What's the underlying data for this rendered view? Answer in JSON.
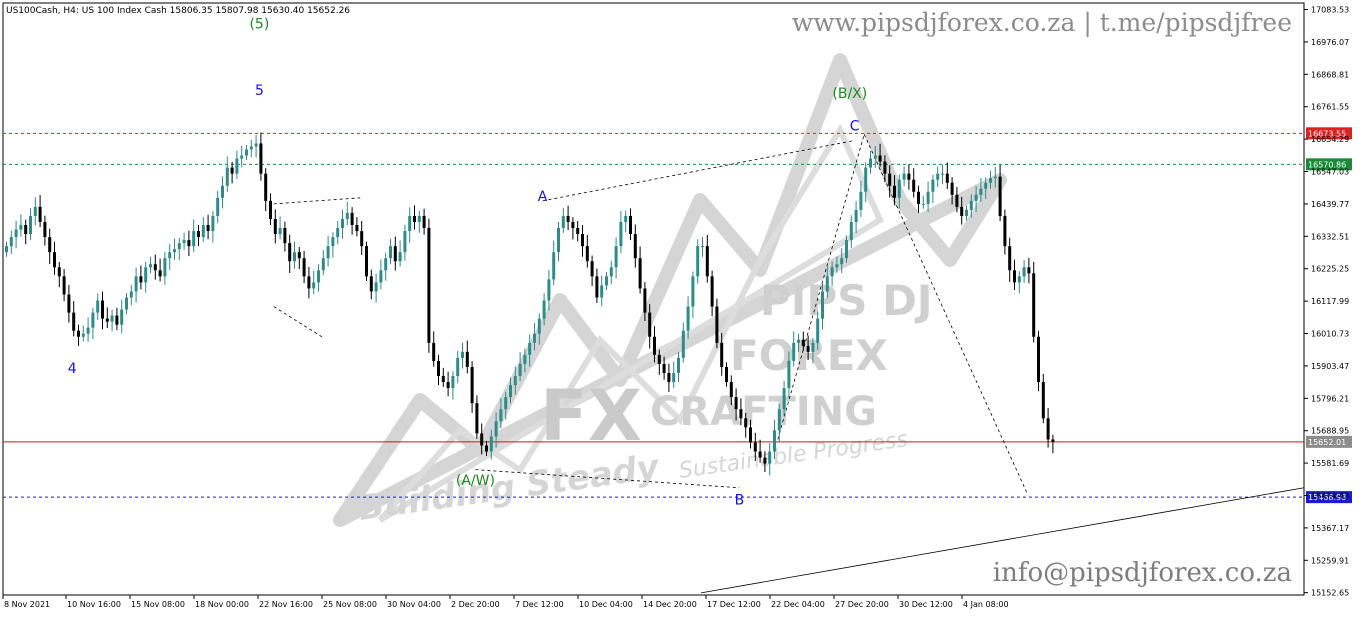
{
  "header": {
    "info": "US100Cash, H4:  US 100 Index Cash  15806.35 15807.98 15630.40 15652.26"
  },
  "watermark": {
    "website": "www.pipsdjforex.co.za | t.me/pipsdjfree",
    "email": "info@pipsdjforex.co.za",
    "logo_lines": [
      "PIPS DJ",
      "FOREX",
      "CRAFTING",
      "FX",
      "Building Steady",
      "Sustainable Progress"
    ]
  },
  "colors": {
    "bull": "#2e8b8b",
    "bear": "#000000",
    "resistance": "#e02020",
    "target": "#1a8a3a",
    "current": "#b22222",
    "support": "#1a1ad6",
    "wave_blue": "#1414e6",
    "wave_green": "#1d8a1d"
  },
  "chart_data": {
    "type": "candlestick",
    "symbol": "US100Cash",
    "timeframe": "H4",
    "description": "US 100 Index Cash",
    "ohlc_last": {
      "open": 15806.35,
      "high": 15807.98,
      "low": 15630.4,
      "close": 15652.26
    },
    "y_ticks": [
      "17083.53",
      "16976.07",
      "16868.81",
      "16761.55",
      "16654.29",
      "16547.03",
      "16439.77",
      "16332.51",
      "16225.25",
      "16117.99",
      "16010.73",
      "15903.47",
      "15796.21",
      "15688.95",
      "15581.69",
      "15474.43",
      "15367.17",
      "15259.91",
      "15152.65"
    ],
    "x_ticks": [
      "8 Nov 2021",
      "10 Nov 16:00",
      "15 Nov 08:00",
      "18 Nov 00:00",
      "22 Nov 16:00",
      "25 Nov 08:00",
      "30 Nov 04:00",
      "2 Dec 20:00",
      "7 Dec 12:00",
      "10 Dec 04:00",
      "14 Dec 20:00",
      "17 Dec 12:00",
      "22 Dec 04:00",
      "27 Dec 20:00",
      "30 Dec 12:00",
      "4 Jan 08:00"
    ],
    "ylim": [
      15145,
      17105
    ],
    "price_lines": [
      {
        "name": "resistance",
        "value": 16673.55,
        "label": "16673.55",
        "style": "dotted",
        "color": "#e02020"
      },
      {
        "name": "target-high",
        "value": 16570.86,
        "label": "16570.86",
        "style": "dotted",
        "color": "#1a8a3a"
      },
      {
        "name": "current-price",
        "value": 15652.01,
        "label": "15652.01",
        "style": "solid",
        "color": "#b22222"
      },
      {
        "name": "support",
        "value": 15468.98,
        "label": "15468.98",
        "style": "dotted",
        "color": "#1a1ad6"
      }
    ],
    "wave_labels": [
      {
        "text": "(5)",
        "x_index": 53,
        "price": 17020,
        "color": "green"
      },
      {
        "text": "5",
        "x_index": 53,
        "price": 16800,
        "color": "blue"
      },
      {
        "text": "4",
        "x_index": 14,
        "price": 15880,
        "color": "blue"
      },
      {
        "text": "A",
        "x_index": 112,
        "price": 16450,
        "color": "blue"
      },
      {
        "text": "(A/W)",
        "x_index": 98,
        "price": 15510,
        "color": "green"
      },
      {
        "text": "B",
        "x_index": 153,
        "price": 15445,
        "color": "blue"
      },
      {
        "text": "(B/X)",
        "x_index": 176,
        "price": 16790,
        "color": "green"
      },
      {
        "text": "C",
        "x_index": 177,
        "price": 16683,
        "color": "blue"
      }
    ],
    "closes": [
      16300,
      16330,
      16355,
      16370,
      16340,
      16400,
      16430,
      16380,
      16330,
      16280,
      16230,
      16200,
      16140,
      16080,
      16020,
      16000,
      16010,
      16030,
      16080,
      16120,
      16060,
      16050,
      16070,
      16040,
      16090,
      16130,
      16150,
      16200,
      16180,
      16230,
      16240,
      16220,
      16200,
      16260,
      16280,
      16290,
      16310,
      16320,
      16300,
      16350,
      16330,
      16370,
      16350,
      16400,
      16460,
      16500,
      16560,
      16540,
      16590,
      16600,
      16620,
      16630,
      16640,
      16540,
      16450,
      16390,
      16340,
      16360,
      16310,
      16250,
      16280,
      16260,
      16200,
      16160,
      16180,
      16220,
      16260,
      16300,
      16330,
      16360,
      16390,
      16410,
      16370,
      16350,
      16300,
      16200,
      16150,
      16180,
      16220,
      16260,
      16300,
      16250,
      16280,
      16350,
      16400,
      16380,
      16400,
      16360,
      15980,
      15920,
      15870,
      15850,
      15830,
      15870,
      15930,
      15950,
      15900,
      15780,
      15680,
      15640,
      15620,
      15670,
      15720,
      15760,
      15800,
      15840,
      15870,
      15910,
      15940,
      15980,
      16010,
      16060,
      16120,
      16190,
      16280,
      16360,
      16400,
      16380,
      16360,
      16340,
      16300,
      16250,
      16200,
      16130,
      16170,
      16200,
      16230,
      16300,
      16380,
      16400,
      16340,
      16260,
      16160,
      16080,
      16000,
      15940,
      15910,
      15880,
      15850,
      15880,
      15930,
      16020,
      16100,
      16200,
      16300,
      16300,
      16200,
      16100,
      15980,
      15900,
      15850,
      15800,
      15760,
      15730,
      15700,
      15650,
      15620,
      15600,
      15580,
      15620,
      15690,
      15760,
      15830,
      15920,
      15980,
      15990,
      15970,
      15950,
      15980,
      16060,
      16150,
      16200,
      16230,
      16240,
      16260,
      16320,
      16380,
      16420,
      16480,
      16560,
      16590,
      16600,
      16580,
      16540,
      16500,
      16460,
      16520,
      16540,
      16520,
      16480,
      16440,
      16440,
      16480,
      16520,
      16540,
      16540,
      16510,
      16470,
      16430,
      16400,
      16420,
      16450,
      16470,
      16490,
      16510,
      16525,
      16530,
      16400,
      16300,
      16220,
      16180,
      16200,
      16230,
      16210,
      16000,
      15850,
      15730,
      15660,
      15652.26
    ],
    "trend_lines": [
      {
        "name": "wedge-1",
        "from": {
          "x_index": 56,
          "price": 16440
        },
        "to": {
          "x_index": 74,
          "price": 16460
        }
      },
      {
        "name": "wedge-1-low",
        "from": {
          "x_index": 56,
          "price": 16100
        },
        "to": {
          "x_index": 66,
          "price": 16000
        }
      },
      {
        "name": "ac-upper",
        "from": {
          "x_index": 112,
          "price": 16450
        },
        "to": {
          "x_index": 177,
          "price": 16650
        }
      },
      {
        "name": "aw-b-lower",
        "from": {
          "x_index": 98,
          "price": 15560
        },
        "to": {
          "x_index": 153,
          "price": 15500
        }
      },
      {
        "name": "c-channel",
        "from": {
          "x_index": 161,
          "price": 15660
        },
        "to": {
          "x_index": 179,
          "price": 16670
        }
      },
      {
        "name": "c-drop",
        "from": {
          "x_index": 179,
          "price": 16670
        },
        "to": {
          "x_index": 213,
          "price": 15480
        }
      },
      {
        "name": "long-trend",
        "from": {
          "x_index": 145,
          "price": 15152
        },
        "to": {
          "x_index": 271,
          "price": 15500
        }
      }
    ]
  }
}
